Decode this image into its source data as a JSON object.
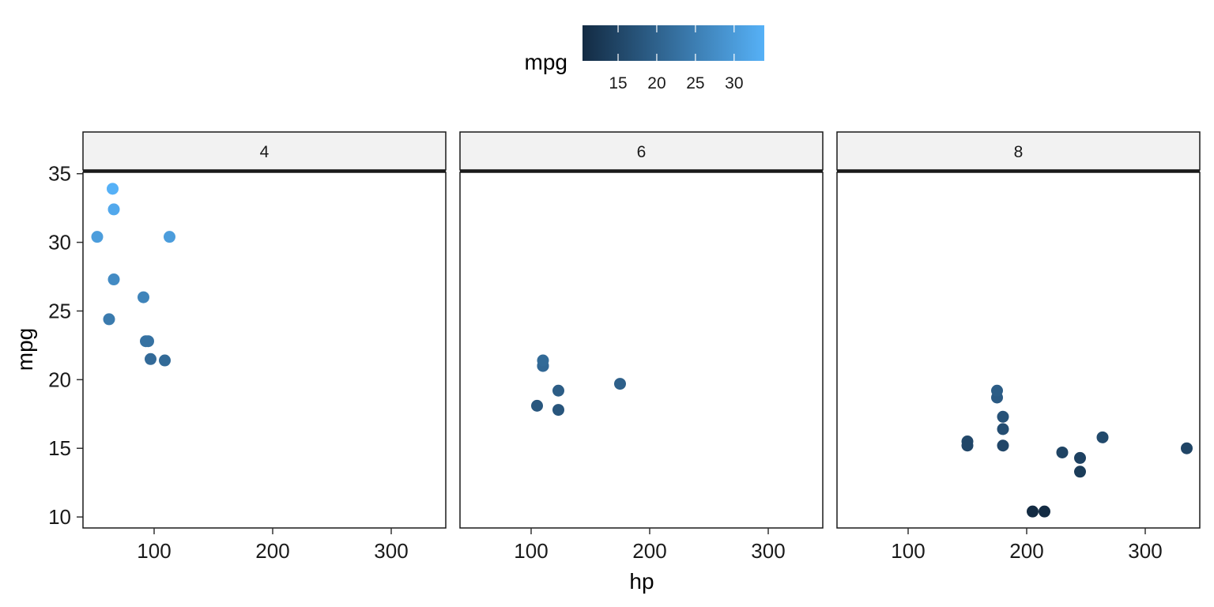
{
  "chart_data": {
    "type": "scatter",
    "facet_by": "cyl",
    "xlabel": "hp",
    "ylabel": "mpg",
    "xlim": [
      40,
      346
    ],
    "ylim": [
      9.2,
      35.1
    ],
    "x_ticks": [
      100,
      200,
      300
    ],
    "y_ticks": [
      10,
      15,
      20,
      25,
      30,
      35
    ],
    "color_by": "mpg",
    "legend": {
      "title": "mpg",
      "position": "top",
      "range": [
        10.4,
        33.9
      ],
      "ticks": [
        15,
        20,
        25,
        30
      ],
      "low_color": "#132B43",
      "high_color": "#56B1F7"
    },
    "panels": [
      {
        "label": "4",
        "points": [
          {
            "x": 93,
            "y": 22.8
          },
          {
            "x": 62,
            "y": 24.4
          },
          {
            "x": 95,
            "y": 22.8
          },
          {
            "x": 66,
            "y": 32.4
          },
          {
            "x": 52,
            "y": 30.4
          },
          {
            "x": 65,
            "y": 33.9
          },
          {
            "x": 97,
            "y": 21.5
          },
          {
            "x": 66,
            "y": 27.3
          },
          {
            "x": 91,
            "y": 26.0
          },
          {
            "x": 113,
            "y": 30.4
          },
          {
            "x": 109,
            "y": 21.4
          }
        ]
      },
      {
        "label": "6",
        "points": [
          {
            "x": 110,
            "y": 21.0
          },
          {
            "x": 110,
            "y": 21.0
          },
          {
            "x": 110,
            "y": 21.4
          },
          {
            "x": 105,
            "y": 18.1
          },
          {
            "x": 123,
            "y": 19.2
          },
          {
            "x": 123,
            "y": 17.8
          },
          {
            "x": 175,
            "y": 19.7
          }
        ]
      },
      {
        "label": "8",
        "points": [
          {
            "x": 175,
            "y": 18.7
          },
          {
            "x": 245,
            "y": 14.3
          },
          {
            "x": 180,
            "y": 16.4
          },
          {
            "x": 180,
            "y": 17.3
          },
          {
            "x": 180,
            "y": 15.2
          },
          {
            "x": 205,
            "y": 10.4
          },
          {
            "x": 215,
            "y": 10.4
          },
          {
            "x": 150,
            "y": 15.5
          },
          {
            "x": 150,
            "y": 15.2
          },
          {
            "x": 245,
            "y": 13.3
          },
          {
            "x": 175,
            "y": 19.2
          },
          {
            "x": 264,
            "y": 15.8
          },
          {
            "x": 335,
            "y": 15.0
          },
          {
            "x": 230,
            "y": 14.7
          }
        ]
      }
    ]
  }
}
